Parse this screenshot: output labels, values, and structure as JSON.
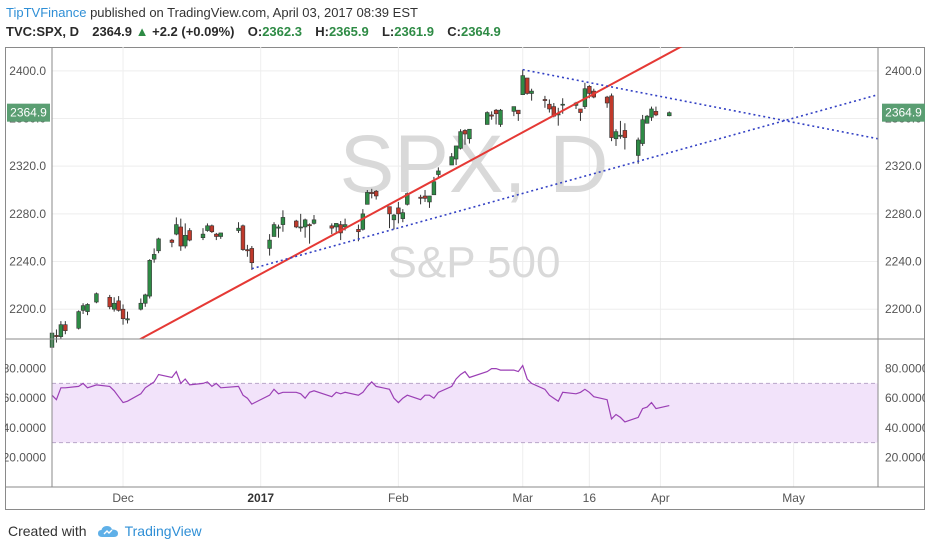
{
  "header": {
    "publisher": "TipTVFinance",
    "published_text": "published on TradingView.com, April 03, 2017 08:39 EST",
    "symbol": "TVC:SPX, D",
    "last": "2364.9",
    "change": "+2.2 (+0.09%)",
    "open_label": "O:",
    "open": "2362.3",
    "high_label": "H:",
    "high": "2365.9",
    "low_label": "L:",
    "low": "2361.9",
    "close_label": "C:",
    "close": "2364.9",
    "colors": {
      "up": "#2e8b45",
      "down": "#c0392b",
      "link": "#2f8fd6"
    }
  },
  "watermark": {
    "symbol": "SPX, D",
    "name": "S&P 500"
  },
  "footer": {
    "created_with": "Created with",
    "brand": "TradingView",
    "logo_icon": "tradingview-cloud-icon"
  },
  "chart_data": [
    {
      "type": "candlestick",
      "series_name": "TVC:SPX, D",
      "ylim": [
        2175,
        2420
      ],
      "y_ticks": [
        "2400.0",
        "2360.0",
        "2320.0",
        "2280.0",
        "2240.0",
        "2200.0"
      ],
      "y_tick_values": [
        2400,
        2360,
        2320,
        2280,
        2240,
        2200
      ],
      "last_price_label": "2364.9",
      "last_price": 2364.9,
      "x_ticks": [
        {
          "label": "Dec",
          "date": "2016-12-01",
          "bold": false
        },
        {
          "label": "2017",
          "date": "2017-01-01",
          "bold": true
        },
        {
          "label": "Feb",
          "date": "2017-02-01",
          "bold": false
        },
        {
          "label": "Mar",
          "date": "2017-03-01",
          "bold": false
        },
        {
          "label": "16",
          "date": "2017-03-16",
          "bold": false
        },
        {
          "label": "Apr",
          "date": "2017-04-01",
          "bold": false
        },
        {
          "label": "May",
          "date": "2017-05-01",
          "bold": false
        }
      ],
      "xlim": [
        "2016-11-15",
        "2017-05-20"
      ],
      "candles": [
        {
          "d": "2016-11-15",
          "o": 2168,
          "h": 2182,
          "l": 2164,
          "c": 2180
        },
        {
          "d": "2016-11-16",
          "o": 2178,
          "h": 2183,
          "l": 2172,
          "c": 2177
        },
        {
          "d": "2016-11-17",
          "o": 2177,
          "h": 2190,
          "l": 2175,
          "c": 2187
        },
        {
          "d": "2016-11-18",
          "o": 2187,
          "h": 2190,
          "l": 2179,
          "c": 2182
        },
        {
          "d": "2016-11-21",
          "o": 2184,
          "h": 2199,
          "l": 2183,
          "c": 2198
        },
        {
          "d": "2016-11-22",
          "o": 2199,
          "h": 2205,
          "l": 2196,
          "c": 2203
        },
        {
          "d": "2016-11-23",
          "o": 2198,
          "h": 2205,
          "l": 2195,
          "c": 2204
        },
        {
          "d": "2016-11-25",
          "o": 2206,
          "h": 2214,
          "l": 2205,
          "c": 2213
        },
        {
          "d": "2016-11-28",
          "o": 2210,
          "h": 2212,
          "l": 2200,
          "c": 2202
        },
        {
          "d": "2016-11-29",
          "o": 2200,
          "h": 2210,
          "l": 2198,
          "c": 2205
        },
        {
          "d": "2016-11-30",
          "o": 2207,
          "h": 2211,
          "l": 2198,
          "c": 2199
        },
        {
          "d": "2016-12-01",
          "o": 2200,
          "h": 2204,
          "l": 2187,
          "c": 2192
        },
        {
          "d": "2016-12-02",
          "o": 2191,
          "h": 2198,
          "l": 2188,
          "c": 2192
        },
        {
          "d": "2016-12-05",
          "o": 2200,
          "h": 2209,
          "l": 2199,
          "c": 2205
        },
        {
          "d": "2016-12-06",
          "o": 2205,
          "h": 2213,
          "l": 2202,
          "c": 2212
        },
        {
          "d": "2016-12-07",
          "o": 2211,
          "h": 2242,
          "l": 2209,
          "c": 2241
        },
        {
          "d": "2016-12-08",
          "o": 2242,
          "h": 2251,
          "l": 2239,
          "c": 2246
        },
        {
          "d": "2016-12-09",
          "o": 2249,
          "h": 2260,
          "l": 2247,
          "c": 2259
        },
        {
          "d": "2016-12-12",
          "o": 2258,
          "h": 2259,
          "l": 2252,
          "c": 2256
        },
        {
          "d": "2016-12-13",
          "o": 2263,
          "h": 2277,
          "l": 2262,
          "c": 2271
        },
        {
          "d": "2016-12-14",
          "o": 2269,
          "h": 2276,
          "l": 2249,
          "c": 2253
        },
        {
          "d": "2016-12-15",
          "o": 2253,
          "h": 2272,
          "l": 2251,
          "c": 2262
        },
        {
          "d": "2016-12-16",
          "o": 2266,
          "h": 2268,
          "l": 2257,
          "c": 2258
        },
        {
          "d": "2016-12-19",
          "o": 2260,
          "h": 2268,
          "l": 2258,
          "c": 2263
        },
        {
          "d": "2016-12-20",
          "o": 2266,
          "h": 2272,
          "l": 2265,
          "c": 2270
        },
        {
          "d": "2016-12-21",
          "o": 2270,
          "h": 2271,
          "l": 2264,
          "c": 2265
        },
        {
          "d": "2016-12-22",
          "o": 2263,
          "h": 2264,
          "l": 2258,
          "c": 2261
        },
        {
          "d": "2016-12-23",
          "o": 2261,
          "h": 2264,
          "l": 2259,
          "c": 2264
        },
        {
          "d": "2016-12-27",
          "o": 2266,
          "h": 2273,
          "l": 2264,
          "c": 2268
        },
        {
          "d": "2016-12-28",
          "o": 2270,
          "h": 2271,
          "l": 2249,
          "c": 2250
        },
        {
          "d": "2016-12-29",
          "o": 2250,
          "h": 2254,
          "l": 2244,
          "c": 2249
        },
        {
          "d": "2016-12-30",
          "o": 2251,
          "h": 2253,
          "l": 2233,
          "c": 2239
        },
        {
          "d": "2017-01-03",
          "o": 2251,
          "h": 2263,
          "l": 2245,
          "c": 2258
        },
        {
          "d": "2017-01-04",
          "o": 2261,
          "h": 2273,
          "l": 2261,
          "c": 2271
        },
        {
          "d": "2017-01-05",
          "o": 2268,
          "h": 2271,
          "l": 2260,
          "c": 2269
        },
        {
          "d": "2017-01-06",
          "o": 2271,
          "h": 2283,
          "l": 2265,
          "c": 2277
        },
        {
          "d": "2017-01-09",
          "o": 2274,
          "h": 2275,
          "l": 2268,
          "c": 2269
        },
        {
          "d": "2017-01-10",
          "o": 2269,
          "h": 2280,
          "l": 2265,
          "c": 2269
        },
        {
          "d": "2017-01-11",
          "o": 2269,
          "h": 2276,
          "l": 2260,
          "c": 2275
        },
        {
          "d": "2017-01-12",
          "o": 2271,
          "h": 2272,
          "l": 2255,
          "c": 2270
        },
        {
          "d": "2017-01-13",
          "o": 2272,
          "h": 2279,
          "l": 2271,
          "c": 2275
        },
        {
          "d": "2017-01-17",
          "o": 2270,
          "h": 2272,
          "l": 2263,
          "c": 2268
        },
        {
          "d": "2017-01-18",
          "o": 2269,
          "h": 2272,
          "l": 2264,
          "c": 2272
        },
        {
          "d": "2017-01-19",
          "o": 2271,
          "h": 2274,
          "l": 2258,
          "c": 2264
        },
        {
          "d": "2017-01-20",
          "o": 2269,
          "h": 2276,
          "l": 2266,
          "c": 2271
        },
        {
          "d": "2017-01-23",
          "o": 2267,
          "h": 2271,
          "l": 2257,
          "c": 2265
        },
        {
          "d": "2017-01-24",
          "o": 2267,
          "h": 2284,
          "l": 2266,
          "c": 2280
        },
        {
          "d": "2017-01-25",
          "o": 2288,
          "h": 2300,
          "l": 2288,
          "c": 2298
        },
        {
          "d": "2017-01-26",
          "o": 2298,
          "h": 2301,
          "l": 2293,
          "c": 2297
        },
        {
          "d": "2017-01-27",
          "o": 2299,
          "h": 2300,
          "l": 2292,
          "c": 2295
        },
        {
          "d": "2017-01-30",
          "o": 2286,
          "h": 2286,
          "l": 2268,
          "c": 2280
        },
        {
          "d": "2017-01-31",
          "o": 2275,
          "h": 2280,
          "l": 2267,
          "c": 2279
        },
        {
          "d": "2017-02-01",
          "o": 2285,
          "h": 2290,
          "l": 2272,
          "c": 2280
        },
        {
          "d": "2017-02-02",
          "o": 2276,
          "h": 2284,
          "l": 2273,
          "c": 2281
        },
        {
          "d": "2017-02-03",
          "o": 2288,
          "h": 2298,
          "l": 2287,
          "c": 2297
        },
        {
          "d": "2017-02-06",
          "o": 2294,
          "h": 2296,
          "l": 2288,
          "c": 2293
        },
        {
          "d": "2017-02-07",
          "o": 2295,
          "h": 2300,
          "l": 2290,
          "c": 2293
        },
        {
          "d": "2017-02-08",
          "o": 2290,
          "h": 2295,
          "l": 2285,
          "c": 2295
        },
        {
          "d": "2017-02-09",
          "o": 2296,
          "h": 2311,
          "l": 2296,
          "c": 2307
        },
        {
          "d": "2017-02-10",
          "o": 2313,
          "h": 2319,
          "l": 2311,
          "c": 2316
        },
        {
          "d": "2017-02-13",
          "o": 2321,
          "h": 2331,
          "l": 2321,
          "c": 2328
        },
        {
          "d": "2017-02-14",
          "o": 2326,
          "h": 2337,
          "l": 2321,
          "c": 2337
        },
        {
          "d": "2017-02-15",
          "o": 2335,
          "h": 2351,
          "l": 2334,
          "c": 2349
        },
        {
          "d": "2017-02-16",
          "o": 2350,
          "h": 2351,
          "l": 2338,
          "c": 2347
        },
        {
          "d": "2017-02-17",
          "o": 2343,
          "h": 2351,
          "l": 2339,
          "c": 2351
        },
        {
          "d": "2017-02-21",
          "o": 2355,
          "h": 2366,
          "l": 2355,
          "c": 2365
        },
        {
          "d": "2017-02-22",
          "o": 2363,
          "h": 2366,
          "l": 2359,
          "c": 2362
        },
        {
          "d": "2017-02-23",
          "o": 2367,
          "h": 2368,
          "l": 2355,
          "c": 2364
        },
        {
          "d": "2017-02-24",
          "o": 2355,
          "h": 2368,
          "l": 2353,
          "c": 2367
        },
        {
          "d": "2017-02-27",
          "o": 2366,
          "h": 2370,
          "l": 2362,
          "c": 2370
        },
        {
          "d": "2017-02-28",
          "o": 2367,
          "h": 2367,
          "l": 2358,
          "c": 2364
        },
        {
          "d": "2017-03-01",
          "o": 2380,
          "h": 2401,
          "l": 2380,
          "c": 2396
        },
        {
          "d": "2017-03-02",
          "o": 2394,
          "h": 2394,
          "l": 2380,
          "c": 2381
        },
        {
          "d": "2017-03-03",
          "o": 2381,
          "h": 2385,
          "l": 2375,
          "c": 2383
        },
        {
          "d": "2017-03-06",
          "o": 2376,
          "h": 2379,
          "l": 2369,
          "c": 2375
        },
        {
          "d": "2017-03-07",
          "o": 2372,
          "h": 2376,
          "l": 2365,
          "c": 2368
        },
        {
          "d": "2017-03-08",
          "o": 2370,
          "h": 2373,
          "l": 2361,
          "c": 2362
        },
        {
          "d": "2017-03-09",
          "o": 2363,
          "h": 2369,
          "l": 2354,
          "c": 2364
        },
        {
          "d": "2017-03-10",
          "o": 2372,
          "h": 2377,
          "l": 2364,
          "c": 2372
        },
        {
          "d": "2017-03-13",
          "o": 2371,
          "h": 2374,
          "l": 2368,
          "c": 2373
        },
        {
          "d": "2017-03-14",
          "o": 2368,
          "h": 2368,
          "l": 2358,
          "c": 2365
        },
        {
          "d": "2017-03-15",
          "o": 2370,
          "h": 2390,
          "l": 2368,
          "c": 2385
        },
        {
          "d": "2017-03-16",
          "o": 2387,
          "h": 2388,
          "l": 2377,
          "c": 2381
        },
        {
          "d": "2017-03-17",
          "o": 2383,
          "h": 2385,
          "l": 2377,
          "c": 2378
        },
        {
          "d": "2017-03-20",
          "o": 2378,
          "h": 2379,
          "l": 2369,
          "c": 2373
        },
        {
          "d": "2017-03-21",
          "o": 2379,
          "h": 2381,
          "l": 2341,
          "c": 2344
        },
        {
          "d": "2017-03-22",
          "o": 2343,
          "h": 2351,
          "l": 2337,
          "c": 2349
        },
        {
          "d": "2017-03-23",
          "o": 2345,
          "h": 2358,
          "l": 2343,
          "c": 2346
        },
        {
          "d": "2017-03-24",
          "o": 2350,
          "h": 2356,
          "l": 2334,
          "c": 2344
        },
        {
          "d": "2017-03-27",
          "o": 2329,
          "h": 2344,
          "l": 2322,
          "c": 2342
        },
        {
          "d": "2017-03-28",
          "o": 2339,
          "h": 2363,
          "l": 2337,
          "c": 2359
        },
        {
          "d": "2017-03-29",
          "o": 2356,
          "h": 2363,
          "l": 2356,
          "c": 2362
        },
        {
          "d": "2017-03-30",
          "o": 2361,
          "h": 2370,
          "l": 2358,
          "c": 2368
        },
        {
          "d": "2017-03-31",
          "o": 2366,
          "h": 2370,
          "l": 2362,
          "c": 2363
        },
        {
          "d": "2017-04-03",
          "o": 2362.3,
          "h": 2365.9,
          "l": 2361.9,
          "c": 2364.9
        }
      ],
      "trendlines": [
        {
          "name": "rising-trendline",
          "color": "#e53935",
          "style": "solid",
          "points": [
            {
              "d": "2016-11-25",
              "v": 2155
            },
            {
              "d": "2017-04-07",
              "v": 2423
            }
          ]
        },
        {
          "name": "lower-dotted-support",
          "color": "#3341c4",
          "style": "dotted",
          "points": [
            {
              "d": "2016-12-30",
              "v": 2234
            },
            {
              "d": "2017-05-20",
              "v": 2380
            }
          ]
        },
        {
          "name": "upper-dotted-resistance",
          "color": "#3341c4",
          "style": "dotted",
          "points": [
            {
              "d": "2017-03-01",
              "v": 2401
            },
            {
              "d": "2017-05-20",
              "v": 2343
            }
          ]
        }
      ]
    },
    {
      "type": "line",
      "series_name": "RSI",
      "ylim": [
        0,
        100
      ],
      "y_ticks": [
        "80.0000",
        "60.0000",
        "40.0000",
        "20.0000"
      ],
      "y_tick_values": [
        80,
        60,
        40,
        20
      ],
      "band": [
        30,
        70
      ],
      "color": "#9b3fb5",
      "band_color": "#f2e3fa",
      "values": [
        62,
        59,
        67,
        67,
        68,
        70,
        67,
        69,
        68,
        65,
        61,
        57,
        58,
        63,
        67,
        69,
        71,
        76,
        74,
        78,
        70,
        73,
        69,
        70,
        71,
        68,
        70,
        67,
        68,
        62,
        60,
        56,
        62,
        66,
        63,
        64,
        64,
        63,
        60,
        64,
        65,
        61,
        64,
        63,
        64,
        62,
        64,
        68,
        71,
        68,
        66,
        60,
        57,
        60,
        62,
        59,
        62,
        62,
        60,
        64,
        68,
        73,
        76,
        78,
        74,
        78,
        80,
        80,
        79,
        79,
        78,
        82,
        73,
        70,
        66,
        62,
        60,
        58,
        64,
        63,
        64,
        66,
        64,
        61,
        59,
        46,
        49,
        47,
        44,
        47,
        53,
        54,
        57,
        53,
        55
      ]
    }
  ]
}
